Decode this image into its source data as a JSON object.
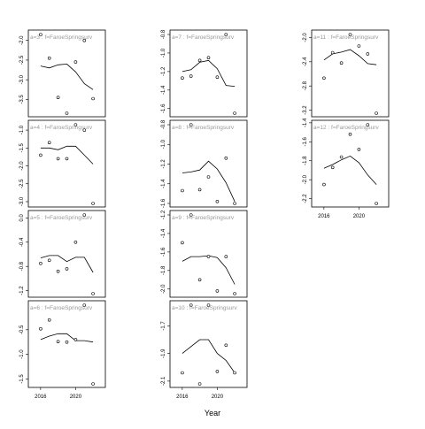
{
  "chart_data": {
    "type": "scatter",
    "xlabel": "Year",
    "ylabel": "",
    "x_ticks": [
      2016,
      2020
    ],
    "x_ticks_shown_on": [
      "a=6",
      "a=10",
      "a=12"
    ],
    "xlim": [
      2014.8,
      2023.2
    ],
    "grid": false,
    "panels": [
      {
        "strip": "a=3 : f=FaroeSpringsurv",
        "ylim": [
          -3.85,
          -1.85
        ],
        "yticks": [
          -2.0,
          -2.5,
          -3.0,
          -3.5
        ],
        "ytick_labels": [
          "-2.0",
          "-2.5",
          "-3.0",
          "-3.5"
        ],
        "points": [
          [
            2016,
            -1.85
          ],
          [
            2017,
            -2.45
          ],
          [
            2018,
            -3.45
          ],
          [
            2019,
            -3.85
          ],
          [
            2020,
            -2.55
          ],
          [
            2021,
            -2.0
          ],
          [
            2022,
            -3.48
          ]
        ],
        "fit": [
          [
            2016,
            -2.65
          ],
          [
            2017,
            -2.7
          ],
          [
            2018,
            -2.62
          ],
          [
            2019,
            -2.6
          ],
          [
            2020,
            -2.8
          ],
          [
            2021,
            -3.1
          ],
          [
            2022,
            -3.25
          ]
        ]
      },
      {
        "strip": "a=7 : f=FaroeSpringsurv",
        "ylim": [
          -1.65,
          -0.8
        ],
        "yticks": [
          -0.8,
          -1.0,
          -1.2,
          -1.4,
          -1.6
        ],
        "ytick_labels": [
          "-0.8",
          "-1.0",
          "-1.2",
          "-1.4",
          "-1.6"
        ],
        "points": [
          [
            2016,
            -1.27
          ],
          [
            2017,
            -1.25
          ],
          [
            2018,
            -1.08
          ],
          [
            2019,
            -1.05
          ],
          [
            2020,
            -1.26
          ],
          [
            2021,
            -0.8
          ],
          [
            2022,
            -1.65
          ]
        ],
        "fit": [
          [
            2016,
            -1.2
          ],
          [
            2017,
            -1.18
          ],
          [
            2018,
            -1.1
          ],
          [
            2019,
            -1.08
          ],
          [
            2020,
            -1.17
          ],
          [
            2021,
            -1.35
          ],
          [
            2022,
            -1.36
          ]
        ]
      },
      {
        "strip": "a=11 : f=FaroeSpringsurv",
        "ylim": [
          -3.25,
          -1.95
        ],
        "yticks": [
          -2.0,
          -2.4,
          -2.8,
          -3.2
        ],
        "ytick_labels": [
          "-2.0",
          "-2.4",
          "-2.8",
          "-3.2"
        ],
        "points": [
          [
            2016,
            -2.67
          ],
          [
            2017,
            -2.25
          ],
          [
            2018,
            -2.42
          ],
          [
            2019,
            -1.95
          ],
          [
            2020,
            -2.14
          ],
          [
            2021,
            -2.27
          ],
          [
            2022,
            -3.25
          ]
        ],
        "fit": [
          [
            2016,
            -2.37
          ],
          [
            2017,
            -2.27
          ],
          [
            2018,
            -2.24
          ],
          [
            2019,
            -2.2
          ],
          [
            2020,
            -2.3
          ],
          [
            2021,
            -2.43
          ],
          [
            2022,
            -2.45
          ]
        ]
      },
      {
        "strip": "a=4 : f=FaroeSpringsurv",
        "ylim": [
          -3.05,
          -0.85
        ],
        "yticks": [
          -1.0,
          -1.5,
          -2.0,
          -2.5,
          -3.0
        ],
        "ytick_labels": [
          "-1.0",
          "-1.5",
          "-2.0",
          "-2.5",
          "-3.0"
        ],
        "points": [
          [
            2016,
            -1.7
          ],
          [
            2017,
            -1.35
          ],
          [
            2018,
            -1.8
          ],
          [
            2019,
            -1.8
          ],
          [
            2020,
            -0.85
          ],
          [
            2021,
            -1.0
          ],
          [
            2022,
            -3.05
          ]
        ],
        "fit": [
          [
            2016,
            -1.5
          ],
          [
            2017,
            -1.5
          ],
          [
            2018,
            -1.55
          ],
          [
            2019,
            -1.45
          ],
          [
            2020,
            -1.45
          ],
          [
            2021,
            -1.7
          ],
          [
            2022,
            -1.95
          ]
        ]
      },
      {
        "strip": "a=8 : f=FaroeSpringsurv",
        "ylim": [
          -1.6,
          -0.8
        ],
        "yticks": [
          -0.8,
          -1.0,
          -1.2,
          -1.4,
          -1.6
        ],
        "ytick_labels": [
          "-0.8",
          "-1.0",
          "-1.2",
          "-1.4",
          "-1.6"
        ],
        "points": [
          [
            2016,
            -1.47
          ],
          [
            2017,
            -0.8
          ],
          [
            2018,
            -1.46
          ],
          [
            2019,
            -1.33
          ],
          [
            2020,
            -1.58
          ],
          [
            2021,
            -1.14
          ],
          [
            2022,
            -1.6
          ]
        ],
        "fit": [
          [
            2016,
            -1.29
          ],
          [
            2017,
            -1.28
          ],
          [
            2018,
            -1.26
          ],
          [
            2019,
            -1.17
          ],
          [
            2020,
            -1.25
          ],
          [
            2021,
            -1.39
          ],
          [
            2022,
            -1.58
          ]
        ]
      },
      {
        "strip": "a=12 : f=FaroeSpringsurv",
        "ylim": [
          -2.25,
          -1.42
        ],
        "yticks": [
          -1.4,
          -1.6,
          -1.8,
          -2.0,
          -2.2
        ],
        "ytick_labels": [
          "-1.4",
          "-1.6",
          "-1.8",
          "-2.0",
          "-2.2"
        ],
        "points": [
          [
            2016,
            -2.05
          ],
          [
            2017,
            -1.87
          ],
          [
            2018,
            -1.76
          ],
          [
            2019,
            -1.52
          ],
          [
            2020,
            -1.68
          ],
          [
            2021,
            -1.42
          ],
          [
            2022,
            -2.25
          ]
        ],
        "fit": [
          [
            2016,
            -1.88
          ],
          [
            2017,
            -1.84
          ],
          [
            2018,
            -1.79
          ],
          [
            2019,
            -1.75
          ],
          [
            2020,
            -1.82
          ],
          [
            2021,
            -1.95
          ],
          [
            2022,
            -2.05
          ]
        ]
      },
      {
        "strip": "a=5 : f=FaroeSpringsurv",
        "ylim": [
          -1.25,
          0.05
        ],
        "yticks": [
          0.0,
          -0.4,
          -0.8,
          -1.2
        ],
        "ytick_labels": [
          "0.0",
          "-0.4",
          "-0.8",
          "-1.2"
        ],
        "points": [
          [
            2016,
            -0.75
          ],
          [
            2017,
            -0.7
          ],
          [
            2018,
            -0.88
          ],
          [
            2019,
            -0.84
          ],
          [
            2020,
            -0.4
          ],
          [
            2021,
            0.05
          ],
          [
            2022,
            -1.25
          ]
        ],
        "fit": [
          [
            2016,
            -0.66
          ],
          [
            2017,
            -0.62
          ],
          [
            2018,
            -0.62
          ],
          [
            2019,
            -0.72
          ],
          [
            2020,
            -0.65
          ],
          [
            2021,
            -0.65
          ],
          [
            2022,
            -0.9
          ]
        ]
      },
      {
        "strip": "a=9 : f=FaroeSpringsurv",
        "ylim": [
          -2.05,
          -1.2
        ],
        "yticks": [
          -1.2,
          -1.4,
          -1.6,
          -1.8,
          -2.0
        ],
        "ytick_labels": [
          "-1.2",
          "-1.4",
          "-1.6",
          "-1.8",
          "-2.0"
        ],
        "points": [
          [
            2016,
            -1.5
          ],
          [
            2017,
            -1.2
          ],
          [
            2018,
            -1.9
          ],
          [
            2019,
            -1.65
          ],
          [
            2020,
            -2.02
          ],
          [
            2021,
            -1.65
          ],
          [
            2022,
            -2.05
          ]
        ],
        "fit": [
          [
            2016,
            -1.7
          ],
          [
            2017,
            -1.65
          ],
          [
            2018,
            -1.65
          ],
          [
            2019,
            -1.64
          ],
          [
            2020,
            -1.66
          ],
          [
            2021,
            -1.77
          ],
          [
            2022,
            -1.95
          ]
        ]
      },
      {
        "strip": "a=6 : f=FaroeSpringsurv",
        "ylim": [
          -1.6,
          0.0
        ],
        "yticks": [
          -0.5,
          -1.0,
          -1.5
        ],
        "ytick_labels": [
          "-0.5",
          "-1.0",
          "-1.5"
        ],
        "points": [
          [
            2016,
            -0.48
          ],
          [
            2017,
            -0.3
          ],
          [
            2018,
            -0.74
          ],
          [
            2019,
            -0.75
          ],
          [
            2020,
            -0.7
          ],
          [
            2021,
            0.0
          ],
          [
            2022,
            -1.6
          ]
        ],
        "fit": [
          [
            2016,
            -0.7
          ],
          [
            2017,
            -0.63
          ],
          [
            2018,
            -0.58
          ],
          [
            2019,
            -0.58
          ],
          [
            2020,
            -0.72
          ],
          [
            2021,
            -0.72
          ],
          [
            2022,
            -0.75
          ]
        ]
      },
      {
        "strip": "a=10 : f=FaroeSpringsurv",
        "ylim": [
          -2.12,
          -1.55
        ],
        "yticks": [
          -1.7,
          -1.9,
          -2.1
        ],
        "ytick_labels": [
          "-1.7",
          "-1.9",
          "-2.1"
        ],
        "points": [
          [
            2016,
            -2.04
          ],
          [
            2017,
            -1.55
          ],
          [
            2018,
            -2.12
          ],
          [
            2019,
            -1.55
          ],
          [
            2020,
            -2.03
          ],
          [
            2021,
            -1.84
          ],
          [
            2022,
            -2.04
          ]
        ],
        "fit": [
          [
            2016,
            -1.9
          ],
          [
            2017,
            -1.85
          ],
          [
            2018,
            -1.8
          ],
          [
            2019,
            -1.8
          ],
          [
            2020,
            -1.9
          ],
          [
            2021,
            -1.95
          ],
          [
            2022,
            -2.04
          ]
        ]
      }
    ]
  }
}
